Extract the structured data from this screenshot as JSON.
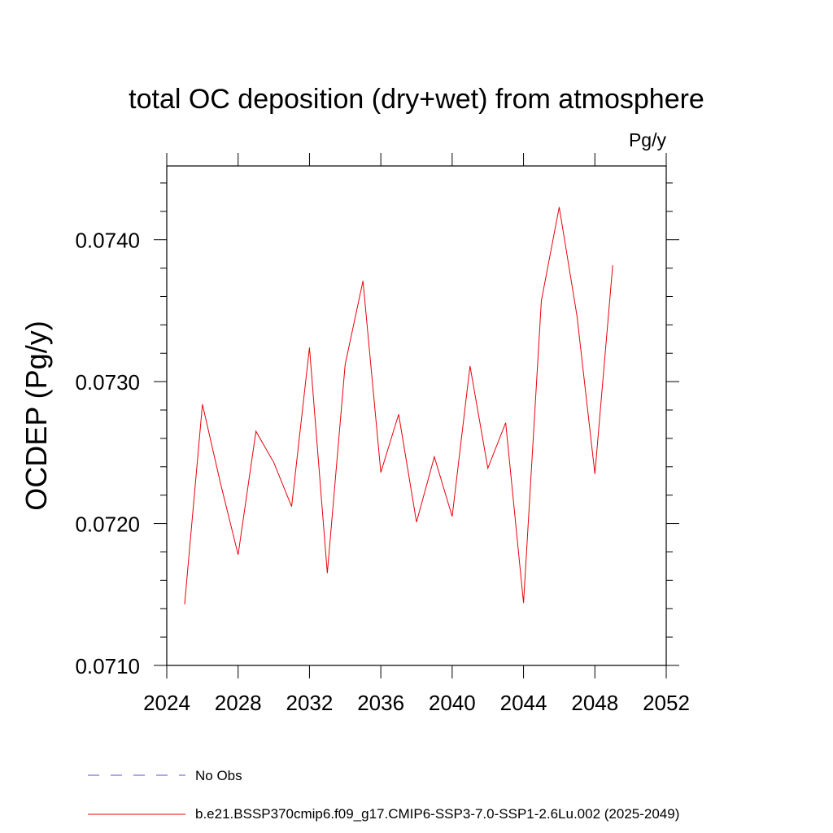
{
  "chart_data": {
    "type": "line",
    "title": "total OC deposition (dry+wet) from atmosphere",
    "units_label": "Pg/y",
    "ylabel": "OCDEP  (Pg/y)",
    "xlabel": "",
    "xlim": [
      2024,
      2052
    ],
    "ylim": [
      0.071,
      0.07452
    ],
    "x_ticks": [
      2024,
      2028,
      2032,
      2036,
      2040,
      2044,
      2048,
      2052
    ],
    "x_tick_labels": [
      "2024",
      "2028",
      "2032",
      "2036",
      "2040",
      "2044",
      "2048",
      "2052"
    ],
    "y_ticks": [
      0.071,
      0.072,
      0.073,
      0.074
    ],
    "y_tick_labels": [
      "0.0710",
      "0.0720",
      "0.0730",
      "0.0740"
    ],
    "grid": false,
    "legend_position": "bottom",
    "series": [
      {
        "name": "b.e21.BSSP370cmip6.f09_g17.CMIP6-SSP3-7.0-SSP1-2.6Lu.002 (2025-2049)",
        "color": "#e8000b",
        "style": "solid",
        "x": [
          2025,
          2026,
          2027,
          2028,
          2029,
          2030,
          2031,
          2032,
          2033,
          2034,
          2035,
          2036,
          2037,
          2038,
          2039,
          2040,
          2041,
          2042,
          2043,
          2044,
          2045,
          2046,
          2047,
          2048,
          2049
        ],
        "values": [
          0.07143,
          0.07284,
          0.07229,
          0.07178,
          0.07265,
          0.07243,
          0.07212,
          0.07324,
          0.07165,
          0.07312,
          0.07371,
          0.07236,
          0.07277,
          0.07201,
          0.07247,
          0.07205,
          0.07311,
          0.07239,
          0.07271,
          0.07144,
          0.07357,
          0.07423,
          0.07346,
          0.07235,
          0.07382
        ]
      },
      {
        "name": "No Obs",
        "color": "#5a4fcf",
        "style": "dashed",
        "x": [],
        "values": []
      }
    ]
  }
}
